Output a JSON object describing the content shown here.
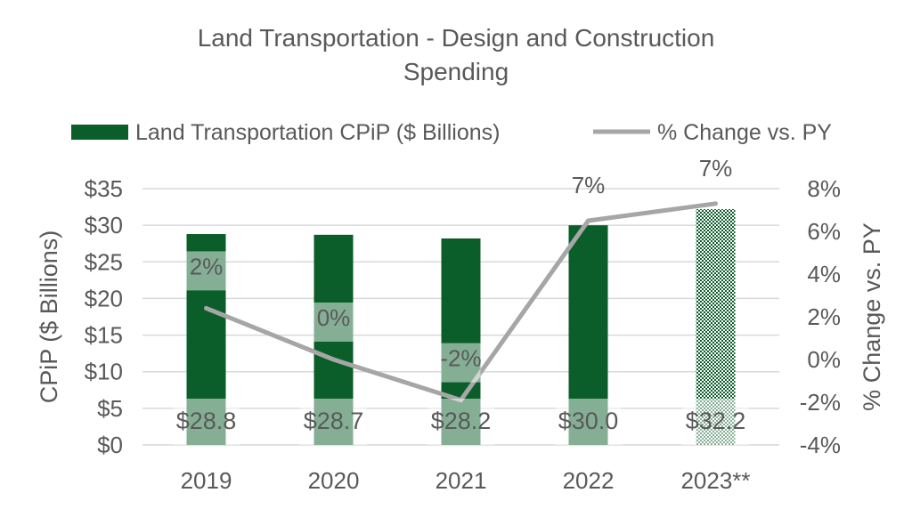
{
  "chart_data": {
    "type": "bar",
    "title": "Land Transportation - Design and Construction Spending",
    "title_lines": [
      "Land Transportation - Design and Construction",
      "Spending"
    ],
    "categories": [
      "2019",
      "2020",
      "2021",
      "2022",
      "2023**"
    ],
    "series": [
      {
        "name": "Land Transportation CPiP ($ Billions)",
        "type": "bar",
        "axis": "left",
        "values": [
          28.8,
          28.7,
          28.2,
          30.0,
          32.2
        ],
        "labels": [
          "$28.8",
          "$28.7",
          "$28.2",
          "$30.0",
          "$32.2"
        ],
        "color": "#0b5e2a",
        "forecast_index": 4
      },
      {
        "name": "% Change vs. PY",
        "type": "line",
        "axis": "right",
        "values": [
          2.4,
          0.0,
          -1.9,
          6.5,
          7.3
        ],
        "labels": [
          "2%",
          "0%",
          "-2%",
          "7%",
          "7%"
        ],
        "color": "#a6a6a6"
      }
    ],
    "ylabel": "CPiP ($ Billions)",
    "ylabel_right": "% Change vs. PY",
    "ylim": [
      0,
      35
    ],
    "ylim_right": [
      -4,
      8
    ],
    "yticks": [
      "$0",
      "$5",
      "$10",
      "$15",
      "$20",
      "$25",
      "$30",
      "$35"
    ],
    "yticks_right": [
      "-4%",
      "-2%",
      "0%",
      "2%",
      "4%",
      "6%",
      "8%"
    ],
    "grid": true,
    "legend_position": "top"
  }
}
